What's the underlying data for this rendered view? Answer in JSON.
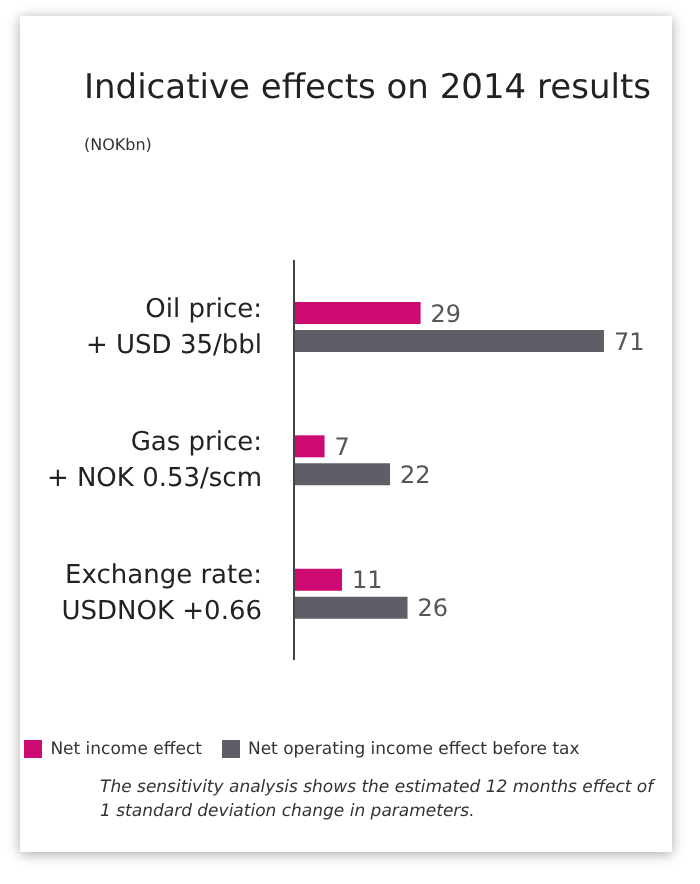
{
  "chart_data": {
    "type": "bar",
    "orientation": "horizontal",
    "title": "Indicative effects on 2014 results",
    "subtitle": "(NOKbn)",
    "categories": [
      "Oil price:\n+ USD 35/bbl",
      "Gas price:\n+ NOK 0.53/scm",
      "Exchange rate:\nUSDNOK +0.66"
    ],
    "series": [
      {
        "name": "Net income effect",
        "color": "#cc0a72",
        "values": [
          29,
          7,
          11
        ]
      },
      {
        "name": "Net operating income effect before tax",
        "color": "#5e5e66",
        "values": [
          71,
          22,
          26
        ]
      }
    ],
    "tick_labels": "y",
    "data_labels": true,
    "legend": "bottom",
    "grid": false,
    "annotations": [
      "The sensitivity analysis shows the estimated 12 months effect of 1 standard deviation change in parameters."
    ]
  }
}
